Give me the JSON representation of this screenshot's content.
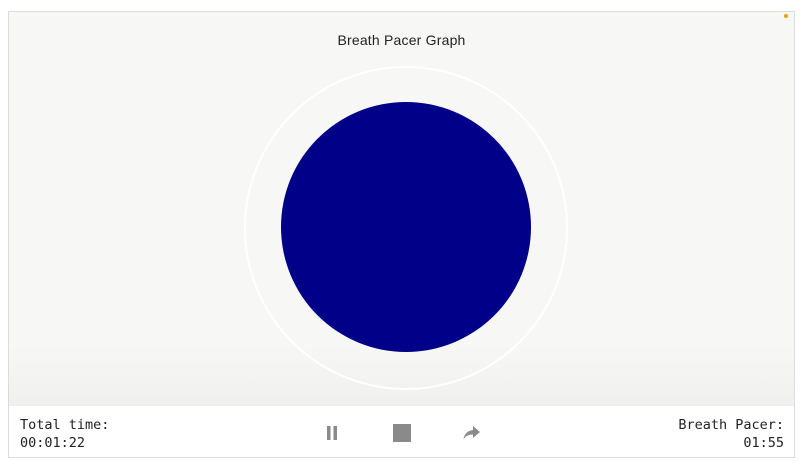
{
  "header": {
    "title": "Breath Pacer Graph"
  },
  "pacer": {
    "circle_color": "#000088",
    "ring_color": "#ffffff",
    "state_indicator_color": "#f39c12"
  },
  "footer": {
    "total_time_label": "Total time:",
    "total_time_value": "00:01:22",
    "breath_pacer_label": "Breath Pacer:",
    "breath_pacer_value": "01:55"
  },
  "controls": {
    "pause_icon": "pause-icon",
    "stop_icon": "stop-icon",
    "forward_icon": "share-forward-icon"
  }
}
